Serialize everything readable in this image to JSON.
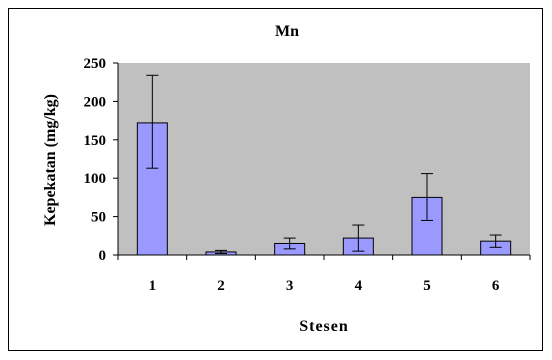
{
  "chart_data": {
    "type": "bar",
    "title": "Mn",
    "xlabel": "Stesen",
    "ylabel": "Kepekatan (mg/kg)",
    "categories": [
      "1",
      "2",
      "3",
      "4",
      "5",
      "6"
    ],
    "values": [
      172,
      4,
      15,
      22,
      75,
      18
    ],
    "error_low": [
      113,
      2,
      8,
      5,
      45,
      10
    ],
    "error_high": [
      234,
      6,
      22,
      39,
      106,
      26
    ],
    "ylim": [
      0,
      250
    ],
    "yticks": [
      0,
      50,
      100,
      150,
      200,
      250
    ],
    "grid": false,
    "legend": "none",
    "colors": {
      "plot_background": "#c0c0c0",
      "bar_fill": "#9999ff",
      "bar_stroke": "#000000"
    }
  }
}
